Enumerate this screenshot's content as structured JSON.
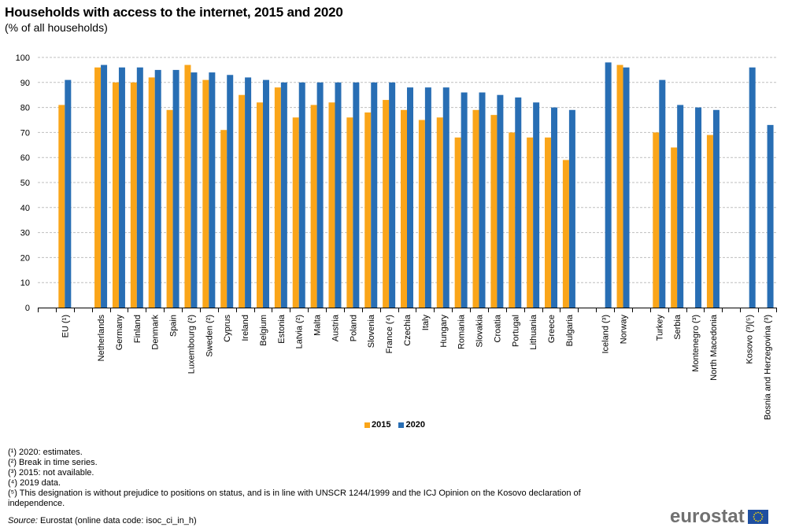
{
  "header": {
    "title": "Households with access to the internet, 2015 and 2020",
    "subtitle": "(% of all households)"
  },
  "colors": {
    "series_2015": "#faa519",
    "series_2020": "#286eb4",
    "grid": "#bfbfbf",
    "axis": "#000000",
    "logo_text": "#707070",
    "flag_blue": "#1f4fa0",
    "flag_star": "#ffdd00"
  },
  "chart_data": {
    "type": "bar",
    "title": "Households with access to the internet, 2015 and 2020",
    "subtitle": "(% of all households)",
    "xlabel": "",
    "ylabel": "",
    "ylim": [
      0,
      100
    ],
    "yticks": [
      0,
      10,
      20,
      30,
      40,
      50,
      60,
      70,
      80,
      90,
      100
    ],
    "grid": true,
    "legend_position": "bottom-center",
    "categories": [
      "",
      "EU (¹)",
      "",
      "Netherlands",
      "Germany",
      "Finland",
      "Denmark",
      "Spain",
      "Luxembourg (²)",
      "Sweden (²)",
      "Cyprus",
      "Ireland",
      "Belgium",
      "Estonia",
      "Latvia (²)",
      "Malta",
      "Austria",
      "Poland",
      "Slovenia",
      "France (⁴)",
      "Czechia",
      "Italy",
      "Hungary",
      "Romania",
      "Slovakia",
      "Croatia",
      "Portugal",
      "Lithuania",
      "Greece",
      "Bulgaria",
      "",
      "Iceland (³)",
      "Norway",
      "",
      "Turkey",
      "Serbia",
      "Montenegro (³)",
      "North Macedonia",
      "",
      "Kosovo (³)(⁵)",
      "Bosnia and Herzegovina (³)"
    ],
    "series": [
      {
        "name": "2015",
        "values": [
          null,
          81,
          null,
          96,
          90,
          90,
          92,
          79,
          97,
          91,
          71,
          85,
          82,
          88,
          76,
          81,
          82,
          76,
          78,
          83,
          79,
          75,
          76,
          68,
          79,
          77,
          70,
          68,
          68,
          59,
          null,
          null,
          97,
          null,
          70,
          64,
          null,
          69,
          null,
          null,
          null
        ]
      },
      {
        "name": "2020",
        "values": [
          null,
          91,
          null,
          97,
          96,
          96,
          95,
          95,
          94,
          94,
          93,
          92,
          91,
          90,
          90,
          90,
          90,
          90,
          90,
          90,
          88,
          88,
          88,
          86,
          86,
          85,
          84,
          82,
          80,
          79,
          null,
          98,
          96,
          null,
          91,
          81,
          80,
          79,
          null,
          96,
          73
        ]
      }
    ]
  },
  "legend": {
    "items": [
      {
        "label": "2015"
      },
      {
        "label": "2020"
      }
    ]
  },
  "footnotes": [
    "(¹) 2020: estimates.",
    "(²) Break in time series.",
    "(³) 2015: not available.",
    "(⁴) 2019 data.",
    "(⁵) This designation is without prejudice to positions on status, and is in line with UNSCR 1244/1999 and the ICJ Opinion on the Kosovo declaration of independence."
  ],
  "source": {
    "label": "Source:",
    "text": " Eurostat (online data code: isoc_ci_in_h)"
  },
  "logo": {
    "text": "eurostat"
  }
}
